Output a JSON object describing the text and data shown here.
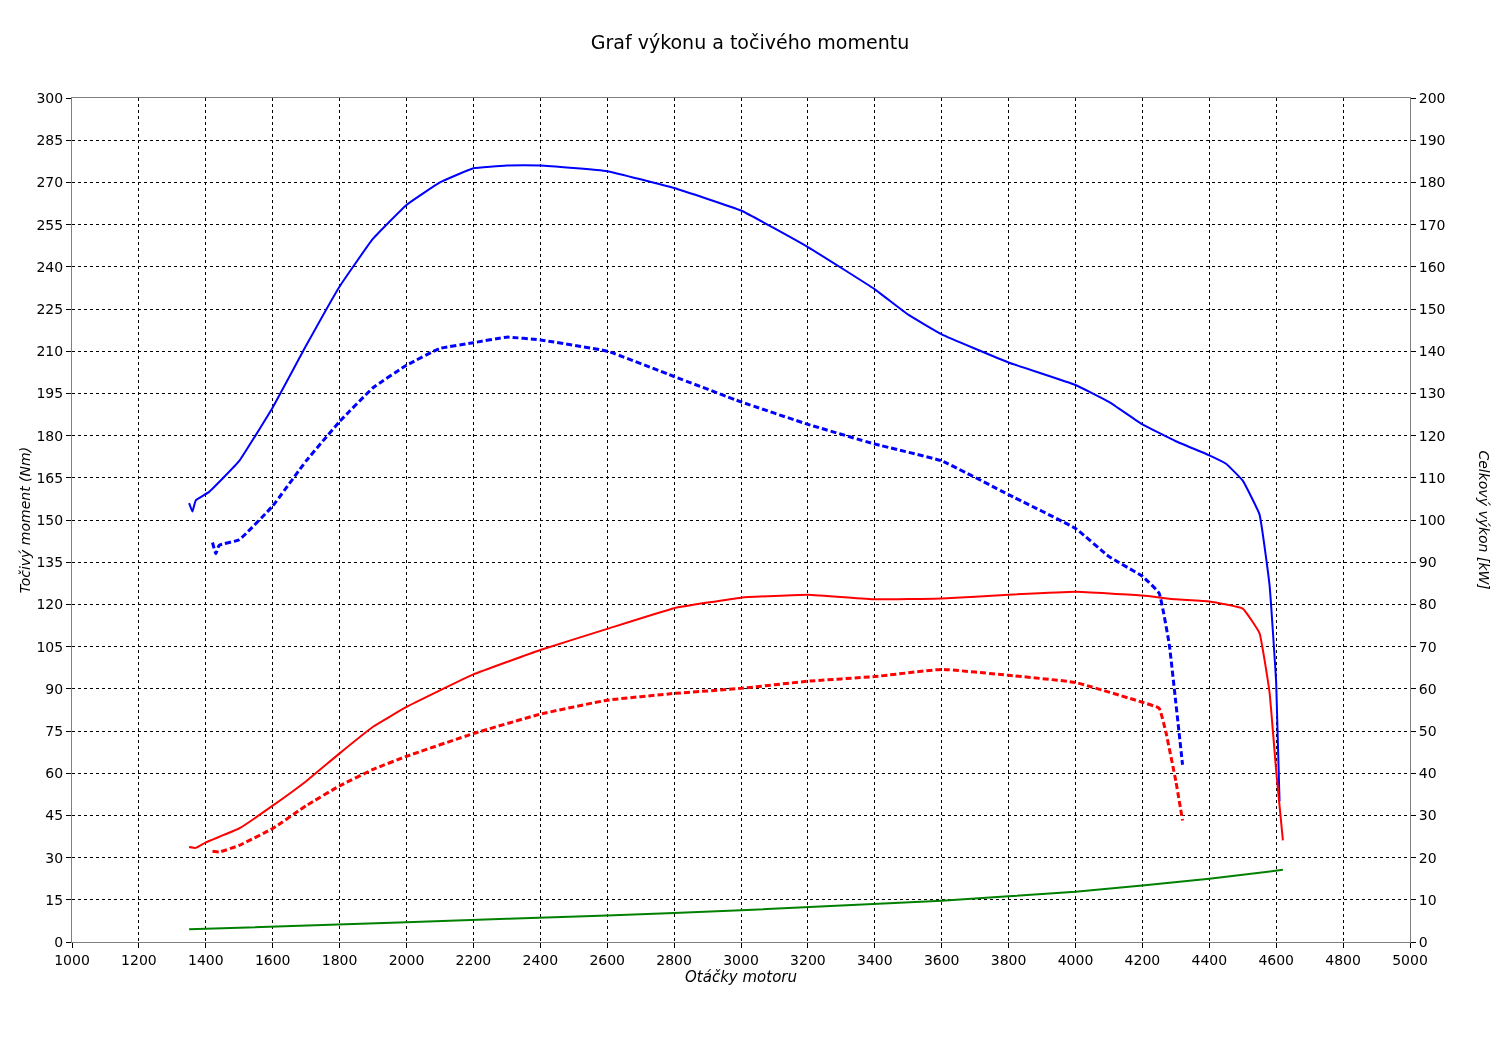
{
  "chart_data": {
    "type": "line",
    "title": "Graf výkonu a točivého momentu",
    "xlabel": "Otáčky motoru",
    "ylabel": "Točivý moment (Nm)",
    "y2label": "Celkový výkon [kW]",
    "xlim": [
      1000,
      5000
    ],
    "xticks": [
      1000,
      1200,
      1400,
      1600,
      1800,
      2000,
      2200,
      2400,
      2600,
      2800,
      3000,
      3200,
      3400,
      3600,
      3800,
      4000,
      4200,
      4400,
      4600,
      4800,
      5000
    ],
    "ylim": [
      0,
      300
    ],
    "yticks": [
      0,
      15,
      30,
      45,
      60,
      75,
      90,
      105,
      120,
      135,
      150,
      165,
      180,
      195,
      210,
      225,
      240,
      255,
      270,
      285,
      300
    ],
    "y2lim": [
      0,
      200
    ],
    "y2ticks": [
      0,
      10,
      20,
      30,
      40,
      50,
      60,
      70,
      80,
      90,
      100,
      110,
      120,
      130,
      140,
      150,
      160,
      170,
      180,
      190,
      200
    ],
    "grid": true,
    "legend": false,
    "series": [
      {
        "color": "#0000ff",
        "line_style": "solid",
        "x": [
          1350,
          1360,
          1370,
          1410,
          1500,
          1600,
          1700,
          1800,
          1900,
          2000,
          2100,
          2200,
          2300,
          2400,
          2600,
          2800,
          3000,
          3200,
          3400,
          3500,
          3600,
          3800,
          4000,
          4100,
          4200,
          4300,
          4400,
          4450,
          4500,
          4550,
          4580,
          4600,
          4610
        ],
        "values": [
          156,
          153,
          157,
          160,
          171,
          190,
          212,
          233,
          250,
          262,
          270,
          275,
          276,
          276,
          274,
          268,
          260,
          247,
          232,
          223,
          216,
          206,
          198,
          192,
          184,
          178,
          173,
          170,
          164,
          152,
          127,
          92,
          50
        ]
      },
      {
        "color": "#0000ff",
        "line_style": "dashed",
        "x": [
          1420,
          1430,
          1440,
          1500,
          1600,
          1700,
          1800,
          1900,
          2000,
          2100,
          2200,
          2300,
          2400,
          2600,
          2800,
          3000,
          3200,
          3400,
          3600,
          3800,
          4000,
          4100,
          4200,
          4250,
          4280,
          4300,
          4320
        ],
        "values": [
          142,
          138,
          141,
          143,
          155,
          171,
          185,
          197,
          205,
          211,
          213,
          215,
          214,
          210,
          201,
          192,
          184,
          177,
          171,
          159,
          147,
          137,
          130,
          124,
          106,
          85,
          63
        ]
      },
      {
        "color": "#ff0000",
        "line_style": "solid",
        "axis": "y2",
        "x": [
          1350,
          1370,
          1400,
          1500,
          1600,
          1700,
          1800,
          1900,
          2000,
          2200,
          2400,
          2600,
          2800,
          3000,
          3200,
          3400,
          3600,
          3800,
          4000,
          4200,
          4300,
          4400,
          4500,
          4550,
          4580,
          4600,
          4620
        ],
        "values": [
          22.5,
          22.3,
          23.6,
          26.9,
          32.3,
          38.1,
          44.7,
          51,
          55.7,
          63.4,
          69.2,
          74.2,
          79.1,
          81.6,
          82.3,
          81.2,
          81.4,
          82.3,
          83,
          82.1,
          81.2,
          80.7,
          79,
          73.2,
          59.2,
          40.5,
          24.1
        ]
      },
      {
        "color": "#ff0000",
        "line_style": "dashed",
        "axis": "y2",
        "x": [
          1420,
          1440,
          1500,
          1600,
          1700,
          1800,
          1900,
          2000,
          2200,
          2400,
          2600,
          2800,
          3000,
          3200,
          3400,
          3600,
          3800,
          4000,
          4200,
          4250,
          4270,
          4300,
          4320
        ],
        "values": [
          21.5,
          21.3,
          22.9,
          26.9,
          32.3,
          37,
          40.9,
          44,
          49.4,
          54,
          57.3,
          58.9,
          60.1,
          61.8,
          62.9,
          64.6,
          63.2,
          61.5,
          56.8,
          55.4,
          49.8,
          38.1,
          28.8
        ]
      },
      {
        "color": "#008000",
        "line_style": "solid",
        "axis": "y2",
        "x": [
          1350,
          2000,
          2600,
          3000,
          3600,
          4000,
          4400,
          4620
        ],
        "values": [
          3.0,
          4.7,
          6.3,
          7.5,
          9.8,
          11.9,
          15,
          17.1
        ]
      }
    ]
  }
}
